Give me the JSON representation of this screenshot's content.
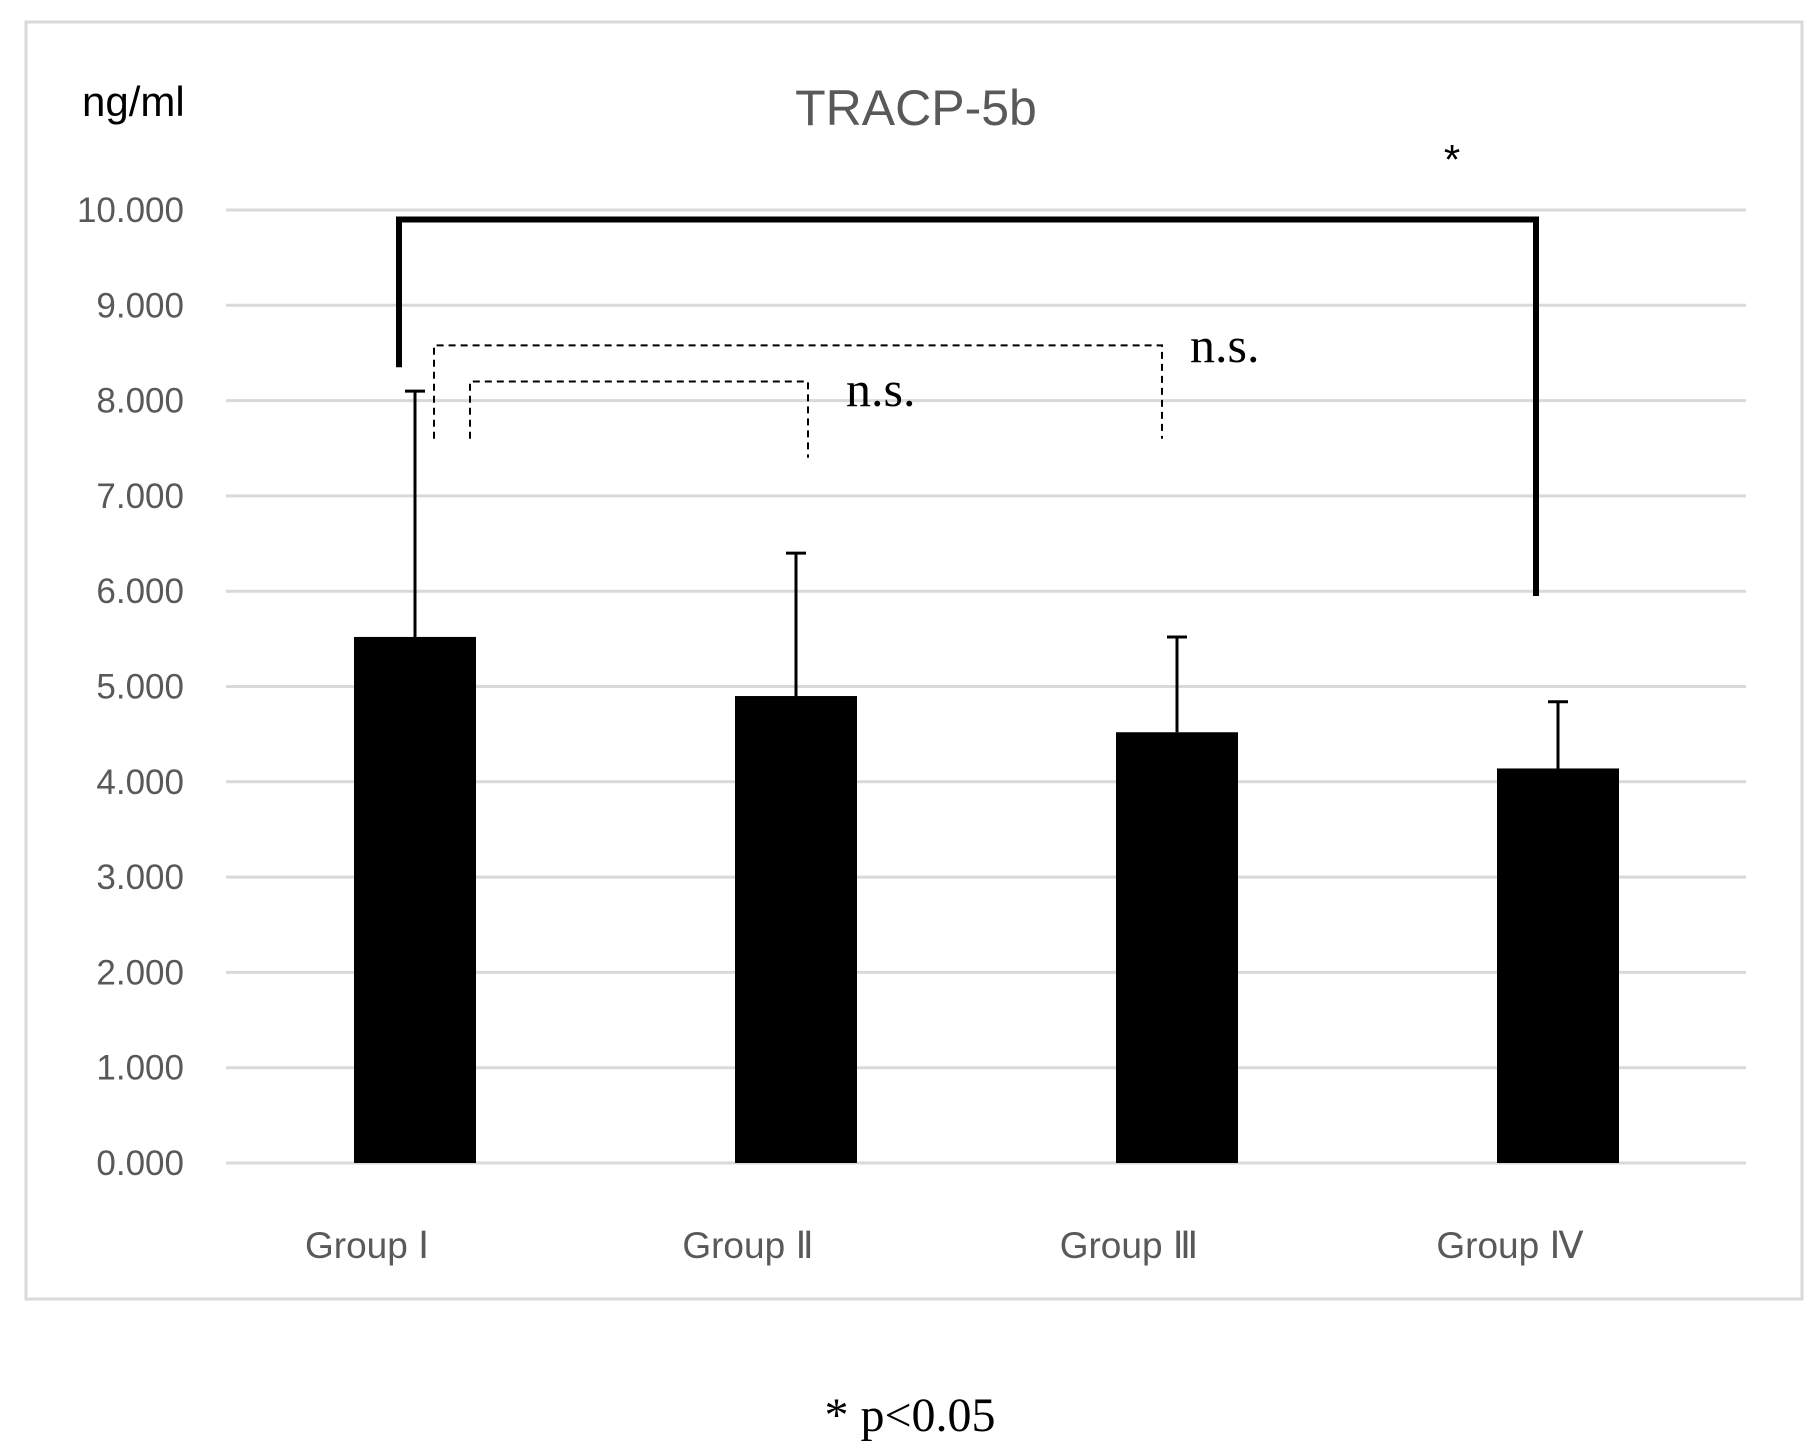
{
  "chart_data": {
    "type": "bar",
    "title": "TRACP-5b",
    "ylabel": "ng/ml",
    "xlabel": "",
    "categories": [
      "Group Ⅰ",
      "Group Ⅱ",
      "Group Ⅲ",
      "Group Ⅳ"
    ],
    "values": [
      5.52,
      4.9,
      4.52,
      4.14
    ],
    "error_upper": [
      8.1,
      6.4,
      5.52,
      4.84
    ],
    "ylim": [
      0,
      10
    ],
    "yticks": [
      "0.000",
      "1.000",
      "2.000",
      "3.000",
      "4.000",
      "5.000",
      "6.000",
      "7.000",
      "8.000",
      "9.000",
      "10.000"
    ],
    "grid": true,
    "bar_color": "#000000",
    "grid_color": "#d9d9d9",
    "annotations": {
      "significant": {
        "from": "Group Ⅰ",
        "to": "Group Ⅳ",
        "label": "*",
        "bracket_y": 9.9,
        "left_end": 8.35,
        "right_end": 5.95
      },
      "ns_outer": {
        "from": "Group Ⅰ",
        "to": "Group Ⅲ",
        "label": "n.s.",
        "bracket_y": 8.58,
        "left_end": 7.6,
        "right_end": 7.6
      },
      "ns_inner": {
        "from": "Group Ⅰ",
        "to": "Group Ⅱ",
        "label": "n.s.",
        "bracket_y": 8.2,
        "left_end": 7.6,
        "right_end": 7.4
      }
    },
    "footnote": "* p<0.05"
  }
}
